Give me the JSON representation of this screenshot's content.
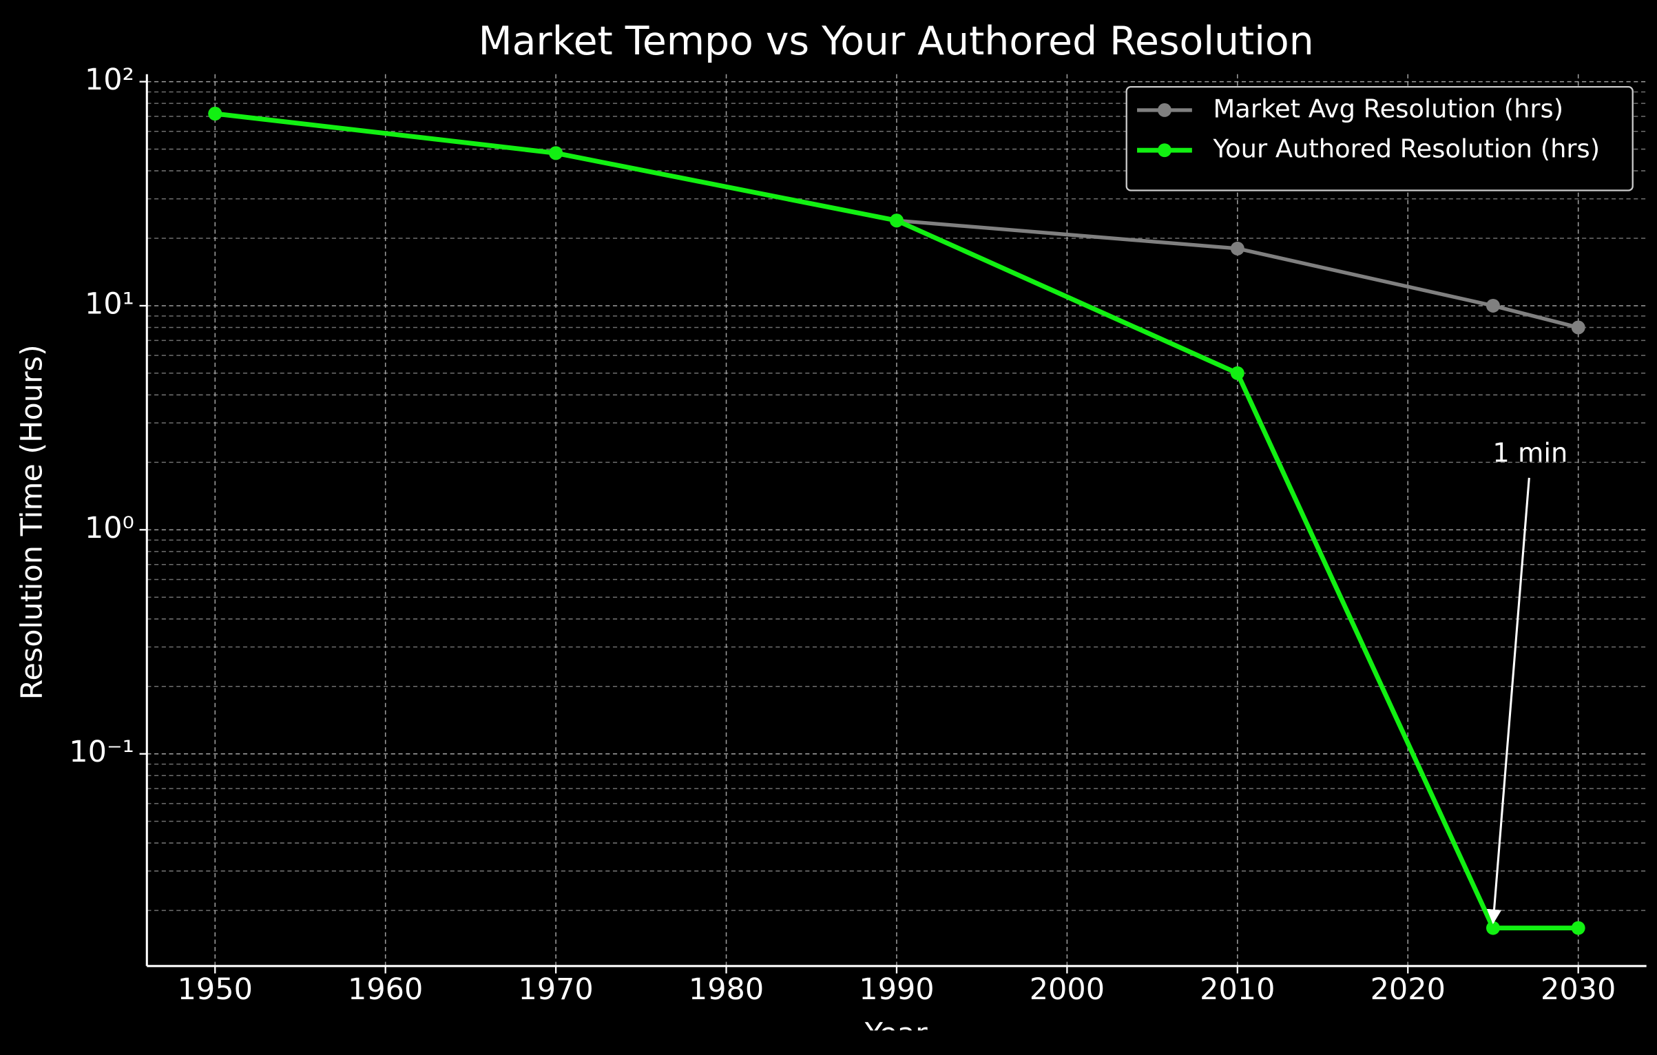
{
  "chart_data": {
    "type": "line",
    "title": "Market Tempo vs Your Authored Resolution",
    "x_label": "Year",
    "y_label": "Resolution Time (Hours)",
    "x": [
      1950,
      1970,
      1990,
      2010,
      2025,
      2030
    ],
    "series": [
      {
        "name": "Market Avg Resolution (hrs)",
        "color": "#808080",
        "values": [
          72,
          48,
          24,
          18,
          10,
          8
        ]
      },
      {
        "name": "Your Authored Resolution (hrs)",
        "color": "#12f012",
        "values": [
          72,
          48,
          24,
          5,
          0.0167,
          0.0167
        ]
      }
    ],
    "xlim": [
      1946,
      2034
    ],
    "xticks": [
      1950,
      1960,
      1970,
      1980,
      1990,
      2000,
      2010,
      2020,
      2030
    ],
    "ylim": [
      0.0113,
      108
    ],
    "y_scale": "log",
    "yticks": [
      {
        "value": 0.1,
        "label": "10⁻¹"
      },
      {
        "value": 1,
        "label": "10⁰"
      },
      {
        "value": 10,
        "label": "10¹"
      },
      {
        "value": 100,
        "label": "10²"
      }
    ],
    "grid": true,
    "legend": "upper right",
    "annotation": {
      "text": "1 min",
      "xy": [
        2025,
        0.0167
      ]
    }
  }
}
